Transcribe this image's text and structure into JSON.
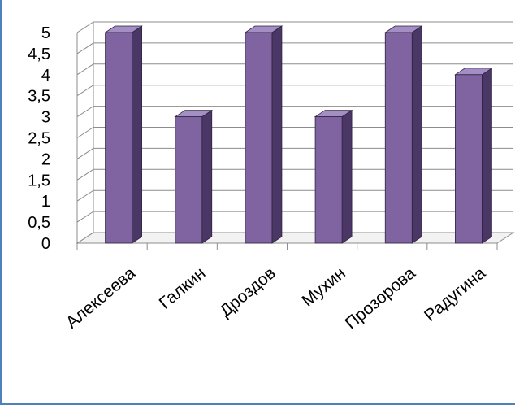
{
  "chart_data": {
    "type": "bar",
    "categories": [
      "Алексеева",
      "Галкин",
      "Дроздов",
      "Мухин",
      "Прозорова",
      "Радугина"
    ],
    "values": [
      5,
      3,
      5,
      3,
      5,
      4
    ],
    "title": "",
    "xlabel": "",
    "ylabel": "",
    "ylim": [
      0,
      5
    ],
    "yticks": [
      "0",
      "0,5",
      "1",
      "1,5",
      "2",
      "2,5",
      "3",
      "3,5",
      "4",
      "4,5",
      "5"
    ],
    "grid": true,
    "legend": "none",
    "style": "3d-column"
  },
  "colors": {
    "bar_front": "#8064a2",
    "bar_side": "#4a3766",
    "bar_top": "#a48fc4",
    "gridline": "#8c8c8c",
    "frame_border": "#4f81bd"
  }
}
